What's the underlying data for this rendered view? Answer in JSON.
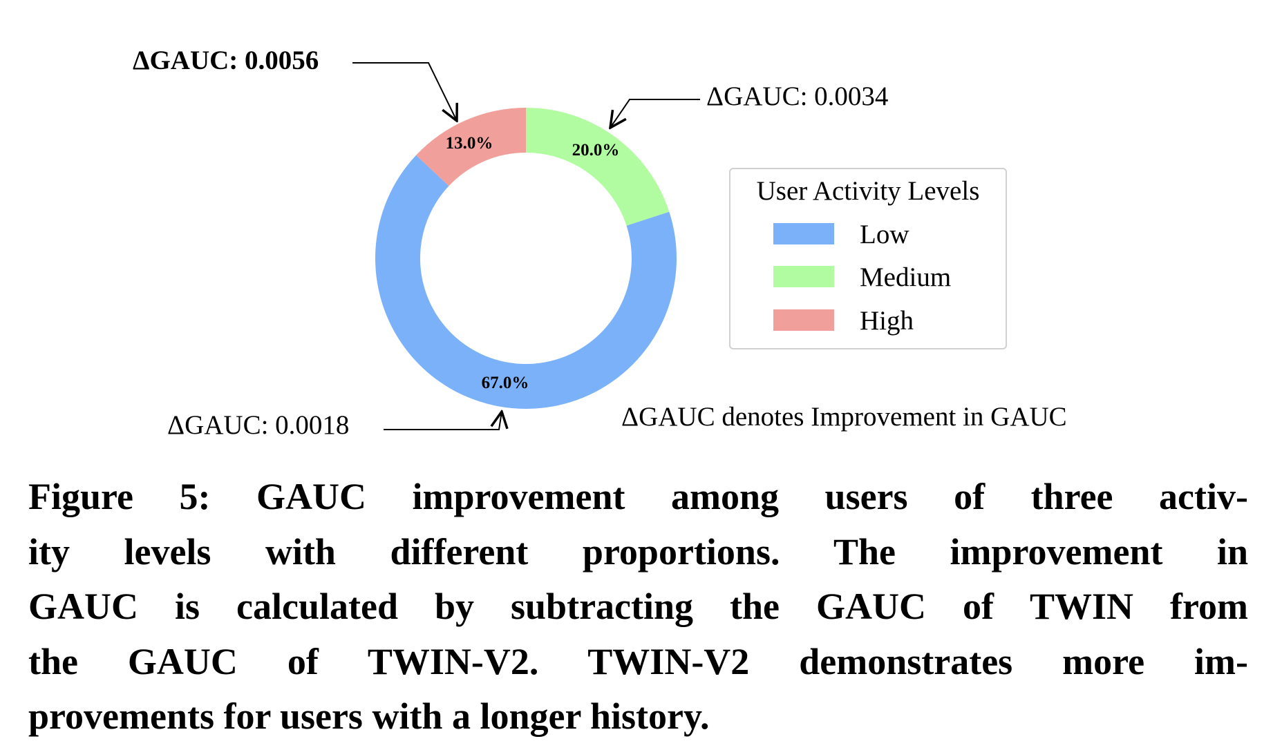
{
  "chart_data": {
    "type": "pie",
    "donut": true,
    "title": "",
    "slices": [
      {
        "label": "Low",
        "value": 67.0,
        "value_label": "67.0%",
        "color": "#7bb1f9",
        "annotation": "ΔGAUC: 0.0018",
        "annotation_bold": false
      },
      {
        "label": "Medium",
        "value": 20.0,
        "value_label": "20.0%",
        "color": "#b1fba0",
        "annotation": "ΔGAUC: 0.0034",
        "annotation_bold": false
      },
      {
        "label": "High",
        "value": 13.0,
        "value_label": "13.0%",
        "color": "#f19f9b",
        "annotation": "ΔGAUC: 0.0056",
        "annotation_bold": true
      }
    ],
    "legend": {
      "title": "User Activity Levels",
      "placement": "right",
      "entries": [
        "Low",
        "Medium",
        "High"
      ]
    },
    "note": "ΔGAUC denotes Improvement in GAUC"
  },
  "caption": {
    "lines": [
      "Figure 5: GAUC improvement among users of three activ-",
      "ity levels with different proportions. The improvement in",
      "GAUC is calculated by subtracting the GAUC of TWIN from",
      "the GAUC of TWIN-V2. TWIN-V2 demonstrates more im-",
      "provements for users with a longer history."
    ]
  }
}
